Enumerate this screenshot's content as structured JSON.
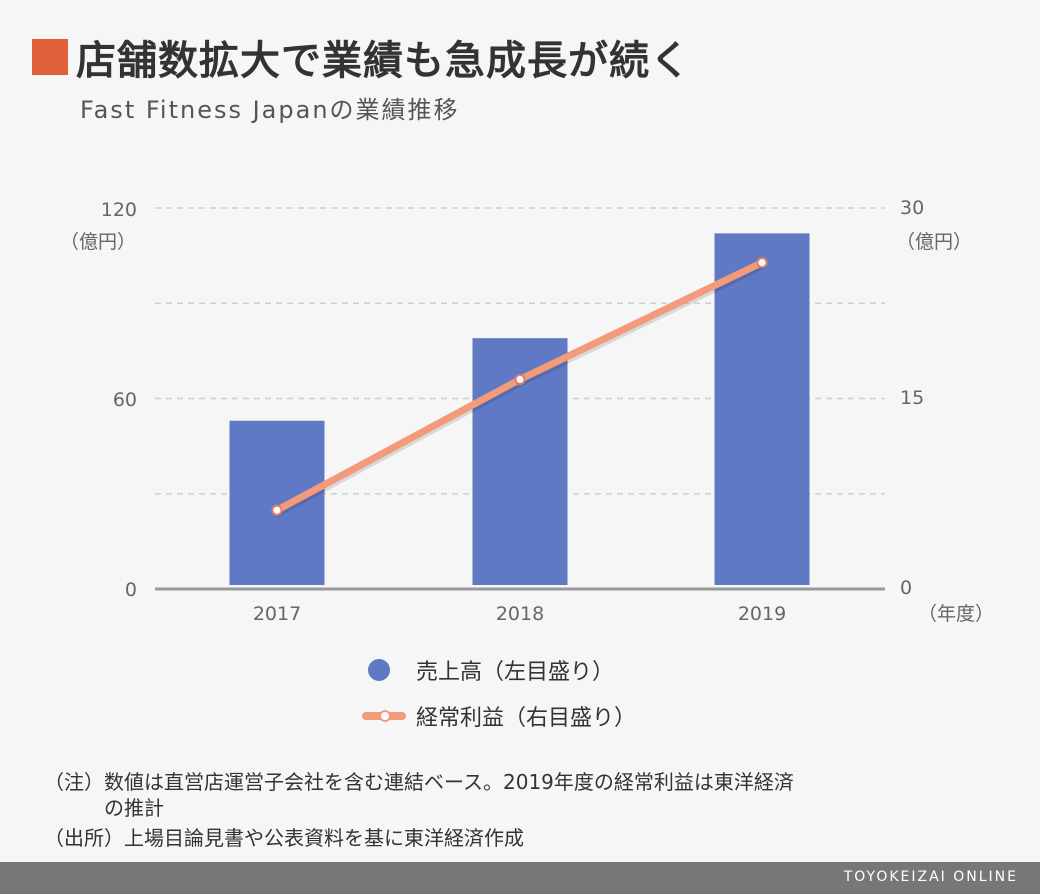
{
  "title": "店舗数拡大で業績も急成長が続く",
  "subtitle": "Fast Fitness Japanの業績推移",
  "colors": {
    "accent": "#e0603a",
    "bar": "#6079c4",
    "line": "#f29a7a"
  },
  "chart_data": {
    "type": "bar",
    "categories": [
      "2017",
      "2018",
      "2019"
    ],
    "series": [
      {
        "name": "売上高（左目盛り）",
        "type": "bar",
        "axis": "left",
        "values": [
          53,
          79,
          112
        ]
      },
      {
        "name": "経常利益（右目盛り）",
        "type": "line",
        "axis": "right",
        "values": [
          6.2,
          16.5,
          25.7
        ]
      }
    ],
    "left_axis": {
      "ticks": [
        "120",
        "60",
        "0"
      ],
      "unit": "（億円）",
      "ylim": [
        0,
        120
      ]
    },
    "right_axis": {
      "ticks": [
        "30",
        "15",
        "0"
      ],
      "unit": "（億円）",
      "ylim": [
        0,
        30
      ]
    },
    "x_unit": "（年度）",
    "grid": true,
    "legend_position": "bottom"
  },
  "notes": {
    "line1": "（注）数値は直営店運営子会社を含む連結ベース。2019年度の経常利益は東洋経済",
    "line2": "　　　の推計",
    "line3": "（出所）上場目論見書や公表資料を基に東洋経済作成"
  },
  "footer": "TOYOKEIZAI ONLINE"
}
